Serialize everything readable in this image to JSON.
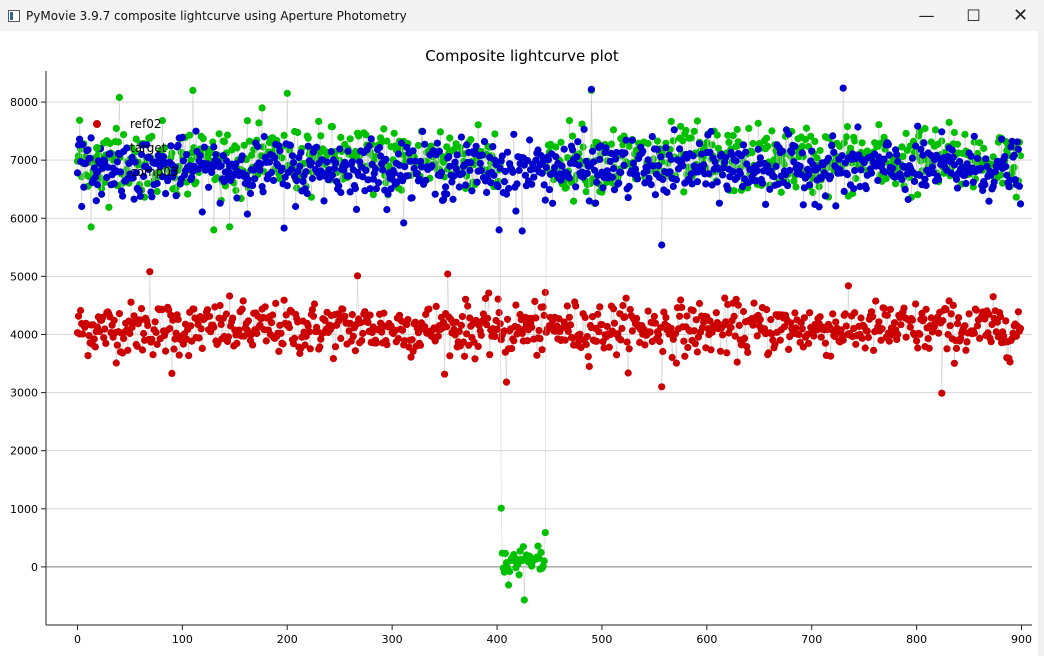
{
  "window": {
    "title": "PyMovie 3.9.7 composite lightcurve using Aperture Photometry",
    "controls": {
      "minimize": "—",
      "maximize": "☐",
      "close": "✕"
    }
  },
  "chart_data": {
    "type": "scatter",
    "title": "Composite lightcurve plot",
    "xlabel": "",
    "ylabel": "",
    "xlim": [
      -30,
      910
    ],
    "ylim": [
      -1000,
      8500
    ],
    "xticks": [
      0,
      100,
      200,
      300,
      400,
      500,
      600,
      700,
      800,
      900
    ],
    "yticks": [
      0,
      1000,
      2000,
      3000,
      4000,
      5000,
      6000,
      7000,
      8000
    ],
    "grid": "horizontal",
    "legend_position": "top-left",
    "n_points": 900,
    "series": [
      {
        "name": "ref02",
        "color": "#cc0000",
        "baseline": 4100,
        "noise": 300,
        "notable_points": [
          [
            69,
            5080
          ],
          [
            267,
            5010
          ],
          [
            353,
            5040
          ],
          [
            409,
            3180
          ],
          [
            557,
            3100
          ],
          [
            824,
            2990
          ],
          [
            90,
            3330
          ]
        ]
      },
      {
        "name": "target",
        "color": "#00c000",
        "baseline": 7000,
        "noise": 380,
        "event": {
          "start": 404,
          "end": 446,
          "level": 100,
          "noise": 180
        },
        "notable_points": [
          [
            404,
            1010
          ],
          [
            426,
            -570
          ],
          [
            446,
            4040
          ],
          [
            446,
            590
          ],
          [
            110,
            8200
          ],
          [
            200,
            8150
          ],
          [
            130,
            5800
          ],
          [
            13,
            5850
          ],
          [
            40,
            8080
          ],
          [
            490,
            8200
          ]
        ]
      },
      {
        "name": "comp03",
        "color": "#0000cc",
        "baseline": 6850,
        "noise": 330,
        "notable_points": [
          [
            490,
            8220
          ],
          [
            730,
            8240
          ],
          [
            557,
            5540
          ],
          [
            197,
            5830
          ],
          [
            402,
            5800
          ],
          [
            424,
            5780
          ]
        ]
      }
    ]
  }
}
